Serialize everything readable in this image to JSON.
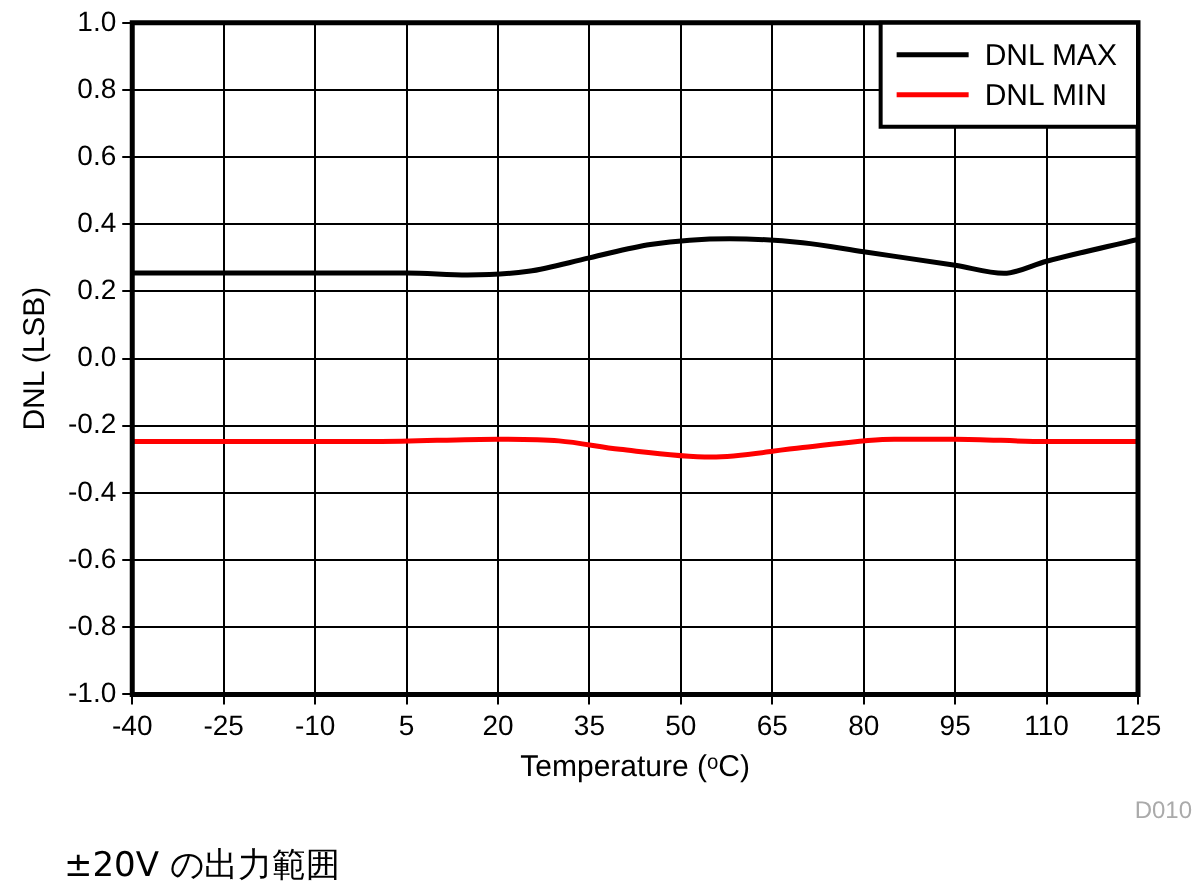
{
  "chart_data": {
    "type": "line",
    "xlabel": "Temperature (ᵒC)",
    "ylabel": "DNL (LSB)",
    "xlim": [
      -40,
      125
    ],
    "xticks": [
      -40,
      -25,
      -10,
      5,
      20,
      35,
      50,
      65,
      80,
      95,
      110,
      125
    ],
    "ylim": [
      -1,
      1
    ],
    "yticks": [
      {
        "value": -1,
        "label": "-1.0"
      },
      -0.8,
      -0.6,
      -0.4,
      -0.2,
      {
        "value": 0,
        "label": "0.0"
      },
      0.2,
      0.4,
      0.6,
      0.8,
      {
        "value": 1,
        "label": "1.0"
      }
    ],
    "grid": true,
    "legend": "top right",
    "marker": "none",
    "line_style": "solid",
    "series": [
      {
        "name": "DNL MAX",
        "color": "#000000",
        "x": [
          -40,
          -10,
          5,
          15,
          25,
          35,
          45,
          58,
          70,
          80,
          95,
          103,
          110,
          125
        ],
        "values": [
          0.255,
          0.255,
          0.255,
          0.249,
          0.26,
          0.3,
          0.34,
          0.357,
          0.345,
          0.318,
          0.278,
          0.254,
          0.29,
          0.355
        ]
      },
      {
        "name": "DNL MIN",
        "color": "#ff0000",
        "x": [
          -40,
          0,
          20,
          30,
          40,
          55,
          70,
          85,
          95,
          110,
          125
        ],
        "values": [
          -0.247,
          -0.247,
          -0.24,
          -0.245,
          -0.27,
          -0.293,
          -0.265,
          -0.24,
          -0.24,
          -0.247,
          -0.247
        ]
      }
    ],
    "annotations": [
      "D010",
      "±20V の出力範囲"
    ]
  }
}
